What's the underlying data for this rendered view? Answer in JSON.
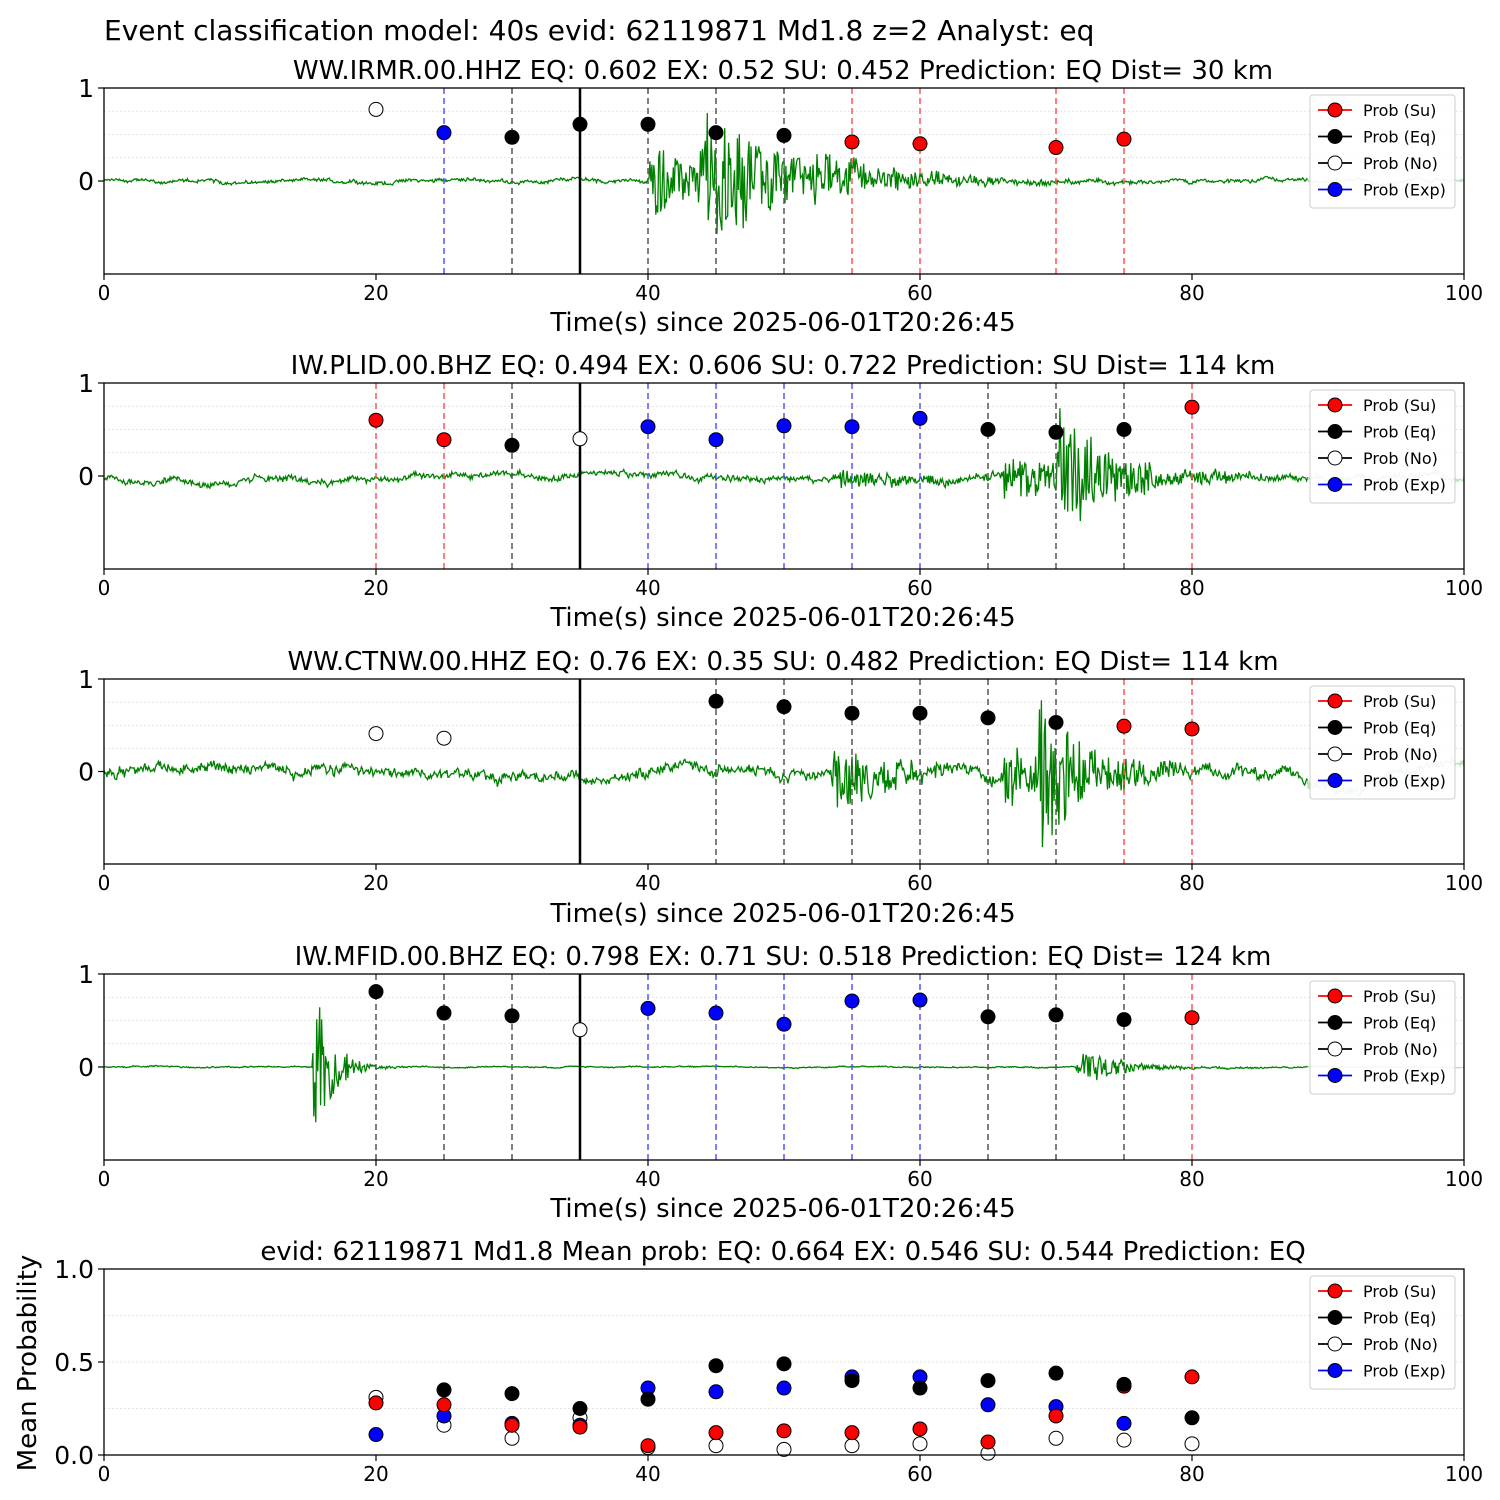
{
  "figure_title": "Event classification model: 40s evid: 62119871 Md1.8 z=2 Analyst: eq",
  "legend_labels": [
    "Prob (Su)",
    "Prob (Eq)",
    "Prob (No)",
    "Prob (Exp)"
  ],
  "colors": {
    "su": "#ff0000",
    "eq": "#000000",
    "no": "#ffffff",
    "exp": "#0000ff",
    "waveform": "#008000",
    "waveform_faded": "#bfe0bf"
  },
  "chart_data": [
    {
      "type": "scatter",
      "title": "WW.IRMR.00.HHZ   EQ: 0.602  EX: 0.52  SU: 0.452   Prediction: EQ    Dist= 30 km",
      "xlabel": "Time(s) since 2025-06-01T20:26:45",
      "xlim": [
        0,
        100
      ],
      "ylim": [
        -1,
        1
      ],
      "xticks": [
        "0",
        "20",
        "40",
        "60",
        "80",
        "100"
      ],
      "yticks": [
        "0",
        "1"
      ],
      "arrival_time": 35,
      "windows": [
        {
          "t": 20,
          "p": 0.77,
          "cls": "no",
          "line": false
        },
        {
          "t": 25,
          "p": 0.52,
          "cls": "exp",
          "line": true
        },
        {
          "t": 30,
          "p": 0.47,
          "cls": "eq",
          "line": true
        },
        {
          "t": 35,
          "p": 0.61,
          "cls": "eq",
          "line": true
        },
        {
          "t": 40,
          "p": 0.61,
          "cls": "eq",
          "line": true
        },
        {
          "t": 45,
          "p": 0.52,
          "cls": "eq",
          "line": true
        },
        {
          "t": 50,
          "p": 0.49,
          "cls": "eq",
          "line": true
        },
        {
          "t": 55,
          "p": 0.42,
          "cls": "su",
          "line": true
        },
        {
          "t": 60,
          "p": 0.4,
          "cls": "su",
          "line": true
        },
        {
          "t": 70,
          "p": 0.36,
          "cls": "su",
          "line": true
        },
        {
          "t": 75,
          "p": 0.45,
          "cls": "su",
          "line": true
        }
      ],
      "waveform": {
        "noise": 0.035,
        "bursts": [
          {
            "t": 40,
            "amp": 0.45,
            "decay": 4
          },
          {
            "t": 43.5,
            "amp": 0.75,
            "decay": 7
          },
          {
            "t": 52,
            "amp": 0.2,
            "decay": 6
          }
        ]
      }
    },
    {
      "type": "scatter",
      "title": "IW.PLID.00.BHZ   EQ: 0.494  EX: 0.606  SU: 0.722   Prediction: SU    Dist= 114 km",
      "xlabel": "Time(s) since 2025-06-01T20:26:45",
      "xlim": [
        0,
        100
      ],
      "ylim": [
        -1,
        1
      ],
      "xticks": [
        "0",
        "20",
        "40",
        "60",
        "80",
        "100"
      ],
      "yticks": [
        "0",
        "1"
      ],
      "arrival_time": 35,
      "windows": [
        {
          "t": 20,
          "p": 0.6,
          "cls": "su",
          "line": true
        },
        {
          "t": 25,
          "p": 0.39,
          "cls": "su",
          "line": true
        },
        {
          "t": 30,
          "p": 0.33,
          "cls": "eq",
          "line": true
        },
        {
          "t": 35,
          "p": 0.4,
          "cls": "no",
          "line": true
        },
        {
          "t": 40,
          "p": 0.53,
          "cls": "exp",
          "line": true
        },
        {
          "t": 45,
          "p": 0.39,
          "cls": "exp",
          "line": true
        },
        {
          "t": 50,
          "p": 0.54,
          "cls": "exp",
          "line": true
        },
        {
          "t": 55,
          "p": 0.53,
          "cls": "exp",
          "line": true
        },
        {
          "t": 60,
          "p": 0.62,
          "cls": "exp",
          "line": true
        },
        {
          "t": 65,
          "p": 0.5,
          "cls": "eq",
          "line": true
        },
        {
          "t": 70,
          "p": 0.47,
          "cls": "eq",
          "line": true
        },
        {
          "t": 75,
          "p": 0.5,
          "cls": "eq",
          "line": true
        },
        {
          "t": 80,
          "p": 0.74,
          "cls": "su",
          "line": true
        }
      ],
      "waveform": {
        "noise": 0.06,
        "bursts": [
          {
            "t": 54,
            "amp": 0.12,
            "decay": 6
          },
          {
            "t": 66,
            "amp": 0.25,
            "decay": 8
          },
          {
            "t": 70,
            "amp": 0.7,
            "decay": 4
          }
        ]
      }
    },
    {
      "type": "scatter",
      "title": "WW.CTNW.00.HHZ   EQ: 0.76  EX: 0.35  SU: 0.482   Prediction: EQ    Dist= 114 km",
      "xlabel": "Time(s) since 2025-06-01T20:26:45",
      "xlim": [
        0,
        100
      ],
      "ylim": [
        -1,
        1
      ],
      "xticks": [
        "0",
        "20",
        "40",
        "60",
        "80",
        "100"
      ],
      "yticks": [
        "0",
        "1"
      ],
      "arrival_time": 35,
      "windows": [
        {
          "t": 20,
          "p": 0.41,
          "cls": "no",
          "line": false
        },
        {
          "t": 25,
          "p": 0.36,
          "cls": "no",
          "line": false
        },
        {
          "t": 45,
          "p": 0.76,
          "cls": "eq",
          "line": true
        },
        {
          "t": 50,
          "p": 0.7,
          "cls": "eq",
          "line": true
        },
        {
          "t": 55,
          "p": 0.63,
          "cls": "eq",
          "line": true
        },
        {
          "t": 60,
          "p": 0.63,
          "cls": "eq",
          "line": true
        },
        {
          "t": 65,
          "p": 0.58,
          "cls": "eq",
          "line": true
        },
        {
          "t": 70,
          "p": 0.53,
          "cls": "eq",
          "line": true
        },
        {
          "t": 75,
          "p": 0.49,
          "cls": "su",
          "line": true
        },
        {
          "t": 80,
          "p": 0.46,
          "cls": "su",
          "line": true
        }
      ],
      "waveform": {
        "noise": 0.1,
        "bursts": [
          {
            "t": 53.5,
            "amp": 0.45,
            "decay": 4
          },
          {
            "t": 66,
            "amp": 0.35,
            "decay": 6
          },
          {
            "t": 68.5,
            "amp": 0.75,
            "decay": 4
          }
        ]
      }
    },
    {
      "type": "scatter",
      "title": "IW.MFID.00.BHZ   EQ: 0.798  EX: 0.71  SU: 0.518   Prediction: EQ    Dist= 124 km",
      "xlabel": "Time(s) since 2025-06-01T20:26:45",
      "xlim": [
        0,
        100
      ],
      "ylim": [
        -1,
        1
      ],
      "xticks": [
        "0",
        "20",
        "40",
        "60",
        "80",
        "100"
      ],
      "yticks": [
        "0",
        "1"
      ],
      "arrival_time": 35,
      "windows": [
        {
          "t": 20,
          "p": 0.81,
          "cls": "eq",
          "line": true
        },
        {
          "t": 25,
          "p": 0.58,
          "cls": "eq",
          "line": true
        },
        {
          "t": 30,
          "p": 0.55,
          "cls": "eq",
          "line": true
        },
        {
          "t": 35,
          "p": 0.4,
          "cls": "no",
          "line": true
        },
        {
          "t": 40,
          "p": 0.63,
          "cls": "exp",
          "line": true
        },
        {
          "t": 45,
          "p": 0.58,
          "cls": "exp",
          "line": true
        },
        {
          "t": 50,
          "p": 0.46,
          "cls": "exp",
          "line": true
        },
        {
          "t": 55,
          "p": 0.71,
          "cls": "exp",
          "line": true
        },
        {
          "t": 60,
          "p": 0.72,
          "cls": "exp",
          "line": true
        },
        {
          "t": 65,
          "p": 0.54,
          "cls": "eq",
          "line": true
        },
        {
          "t": 70,
          "p": 0.56,
          "cls": "eq",
          "line": true
        },
        {
          "t": 75,
          "p": 0.51,
          "cls": "eq",
          "line": true
        },
        {
          "t": 80,
          "p": 0.53,
          "cls": "su",
          "line": true
        }
      ],
      "waveform": {
        "noise": 0.012,
        "bursts": [
          {
            "t": 15.3,
            "amp": 1.0,
            "decay": 1.3
          },
          {
            "t": 71.5,
            "amp": 0.22,
            "decay": 3
          }
        ]
      }
    },
    {
      "type": "scatter",
      "title": "evid: 62119871  Md1.8   Mean prob:   EQ: 0.664  EX: 0.546  SU: 0.544   Prediction: EQ",
      "xlabel": "",
      "ylabel": "Mean Probability",
      "xlim": [
        0,
        100
      ],
      "ylim": [
        0,
        1
      ],
      "xticks": [
        "0",
        "20",
        "40",
        "60",
        "80",
        "100"
      ],
      "yticks": [
        "0.0",
        "0.5",
        "1.0"
      ],
      "x": [
        20,
        25,
        30,
        35,
        40,
        45,
        50,
        55,
        60,
        65,
        70,
        75,
        80
      ],
      "series": [
        {
          "name": "Prob (No)",
          "cls": "no",
          "values": [
            0.31,
            0.16,
            0.09,
            0.2,
            0.04,
            0.05,
            0.03,
            0.05,
            0.06,
            0.01,
            0.09,
            0.08,
            0.06
          ]
        },
        {
          "name": "Prob (Exp)",
          "cls": "exp",
          "values": [
            0.11,
            0.21,
            0.17,
            0.16,
            0.36,
            0.34,
            0.36,
            0.42,
            0.42,
            0.27,
            0.26,
            0.17,
            null
          ]
        },
        {
          "name": "Prob (Su)",
          "cls": "su",
          "values": [
            0.28,
            0.27,
            0.16,
            0.15,
            0.05,
            0.12,
            0.13,
            0.12,
            0.14,
            0.07,
            0.21,
            0.37,
            0.42
          ]
        },
        {
          "name": "Prob (Eq)",
          "cls": "eq",
          "values": [
            null,
            0.35,
            0.33,
            0.25,
            0.3,
            0.48,
            0.49,
            0.4,
            0.36,
            0.4,
            0.44,
            0.38,
            0.2
          ]
        }
      ]
    }
  ]
}
